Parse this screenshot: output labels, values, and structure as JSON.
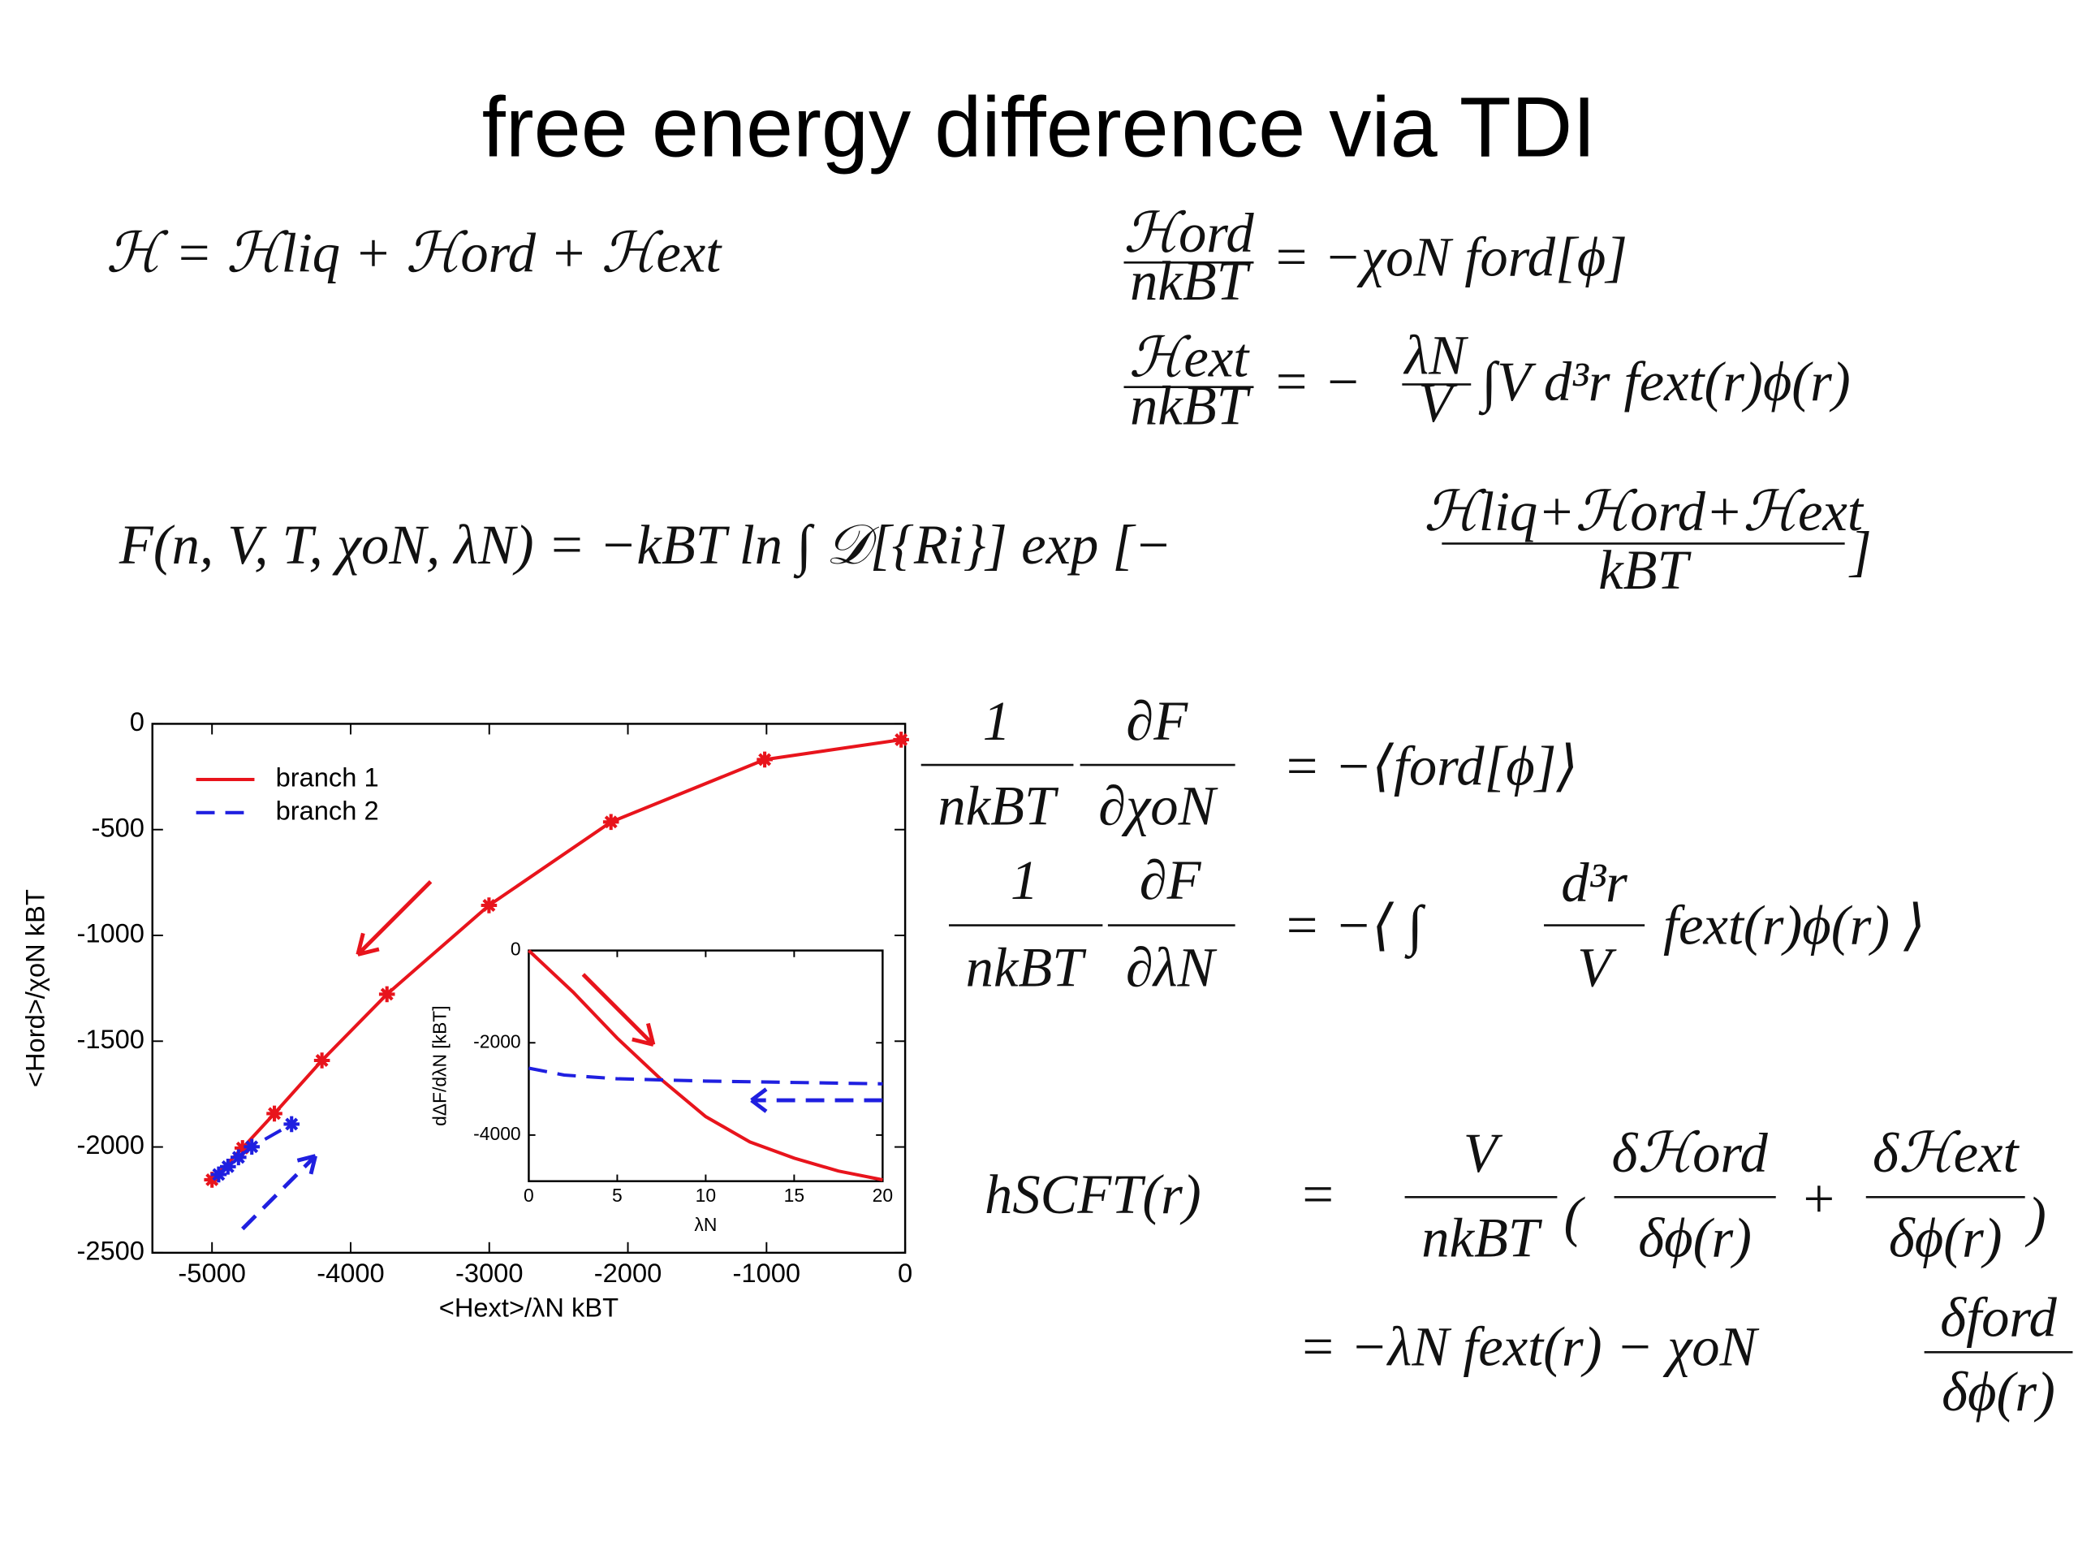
{
  "title": "free energy difference via TDI",
  "equations": [
    {
      "parts": [
        "ℋ = ℋliq + ℋord + ℋext"
      ]
    },
    {
      "parts": [
        "ℋord",
        "nkBT",
        "= −χoN ford[ϕ]"
      ]
    },
    {
      "parts": [
        "ℋext",
        "nkBT",
        "= −",
        "λN",
        "V",
        "∫V d³r fext(r)ϕ(r)"
      ]
    },
    {
      "parts": [
        "F(n, V, T, χoN, λN) = −kBT ln ∫ 𝒟[{Ri}] exp [−",
        "ℋliq+ℋord+ℋext",
        "kBT",
        "]"
      ]
    },
    {
      "parts": [
        "1",
        "nkBT",
        "∂F",
        "∂χoN",
        "=   −⟨ford[ϕ]⟩"
      ]
    },
    {
      "parts": [
        "1",
        "nkBT",
        "∂F",
        "∂λN",
        "=   −⟨ ∫",
        "d³r",
        "V",
        "fext(r)ϕ(r) ⟩"
      ]
    },
    {
      "parts": [
        "hSCFT(r)",
        "=",
        "V",
        "nkBT",
        "(",
        "δℋord",
        "δϕ(r)",
        "+",
        "δℋext",
        "δϕ(r)",
        ")"
      ]
    },
    {
      "parts": [
        "=   −λN fext(r) − χoN",
        "δford",
        "δϕ(r)"
      ]
    }
  ],
  "chart_data": [
    {
      "type": "line",
      "xlabel": "<Hext>/λN kBT",
      "ylabel": "<Hord>/χoN kBT",
      "xlim": [
        -5430,
        0
      ],
      "ylim": [
        -2500,
        0
      ],
      "xticks": [
        -5000,
        -4000,
        -3000,
        -2000,
        -1000,
        0
      ],
      "yticks": [
        -2500,
        -2000,
        -1500,
        -1000,
        -500,
        0
      ],
      "legend": "upper left",
      "series": [
        {
          "name": "branch 1",
          "color": "#e8141c",
          "dash": false,
          "markers": true,
          "x": [
            -5000,
            -4780,
            -4550,
            -4207,
            -3738,
            -3002,
            -2122,
            -1013,
            -29
          ],
          "values": [
            -2155,
            -2005,
            -1842,
            -1591,
            -1278,
            -858,
            -464,
            -169,
            -75
          ]
        },
        {
          "name": "branch 2",
          "color": "#1f1fe0",
          "dash": true,
          "markers": true,
          "x": [
            -4952,
            -4885,
            -4809,
            -4713,
            -4426
          ],
          "values": [
            -2130,
            -2093,
            -2049,
            -1999,
            -1892
          ]
        }
      ]
    },
    {
      "type": "line",
      "xlabel": "λN",
      "ylabel": "dΔF/dλN  [kBT]",
      "xlim": [
        0,
        20
      ],
      "ylim": [
        -5000,
        0
      ],
      "xticks": [
        0,
        5,
        10,
        15,
        20
      ],
      "yticks": [
        -4000,
        -2000,
        0
      ],
      "series": [
        {
          "color": "#e8141c",
          "dash": false,
          "markers": false,
          "x": [
            0,
            2.5,
            5,
            7.5,
            10,
            12.5,
            15,
            17.5,
            20
          ],
          "values": [
            0,
            -900,
            -1900,
            -2800,
            -3600,
            -4150,
            -4500,
            -4780,
            -4970
          ]
        },
        {
          "color": "#1f1fe0",
          "dash": true,
          "markers": false,
          "x": [
            0,
            2,
            5,
            10,
            15,
            20
          ],
          "values": [
            -2550,
            -2700,
            -2780,
            -2830,
            -2860,
            -2890
          ]
        }
      ]
    }
  ]
}
